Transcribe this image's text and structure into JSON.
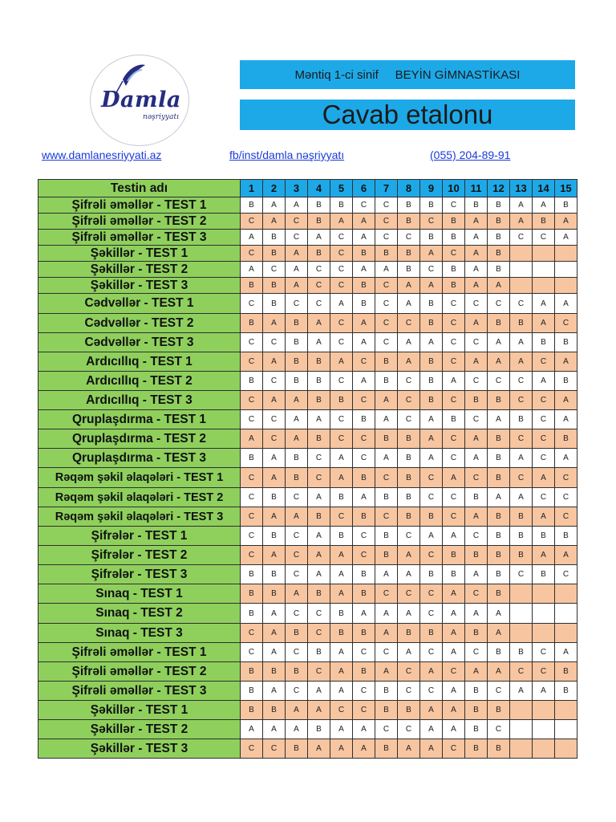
{
  "publisher": {
    "name": "Damla",
    "subtitle": "nəşriyyatı",
    "colors": {
      "logo_text": "#262c80",
      "banner": "#1da9e8",
      "name_cell": "#8fd05d",
      "peach_cell": "#f7c5a0"
    }
  },
  "header": {
    "subject": "Məntiq 1-ci sinif",
    "series": "BEYİN GİMNASTİKASI",
    "title": "Cavab etalonu"
  },
  "links": {
    "website": "www.damlanesriyyati.az",
    "social": "fb/inst/damla nəşriyyatı",
    "phone": "(055) 204-89-91"
  },
  "table": {
    "name_header": "Testin adı",
    "numbers": [
      "1",
      "2",
      "3",
      "4",
      "5",
      "6",
      "7",
      "8",
      "9",
      "10",
      "11",
      "12",
      "13",
      "14",
      "15"
    ],
    "rows": [
      {
        "name": "Şifrəli əməllər - TEST 1",
        "answers": [
          "B",
          "A",
          "A",
          "B",
          "B",
          "C",
          "C",
          "B",
          "B",
          "C",
          "B",
          "B",
          "A",
          "A",
          "B"
        ]
      },
      {
        "name": "Şifrəli əməllər - TEST 2",
        "answers": [
          "C",
          "A",
          "C",
          "B",
          "A",
          "A",
          "C",
          "B",
          "C",
          "B",
          "A",
          "B",
          "A",
          "B",
          "A"
        ]
      },
      {
        "name": "Şifrəli əməllər - TEST 3",
        "answers": [
          "A",
          "B",
          "C",
          "A",
          "C",
          "A",
          "C",
          "C",
          "B",
          "B",
          "A",
          "B",
          "C",
          "C",
          "A"
        ]
      },
      {
        "name": "Şəkillər - TEST 1",
        "answers": [
          "C",
          "B",
          "A",
          "B",
          "C",
          "B",
          "B",
          "B",
          "A",
          "C",
          "A",
          "B",
          "",
          "",
          ""
        ]
      },
      {
        "name": "Şəkillər - TEST 2",
        "answers": [
          "A",
          "C",
          "A",
          "C",
          "C",
          "A",
          "A",
          "B",
          "C",
          "B",
          "A",
          "B",
          "",
          "",
          ""
        ]
      },
      {
        "name": "Şəkillər - TEST 3",
        "answers": [
          "B",
          "B",
          "A",
          "C",
          "C",
          "B",
          "C",
          "A",
          "A",
          "B",
          "A",
          "A",
          "",
          "",
          ""
        ]
      },
      {
        "name": "Cədvəllər - TEST 1",
        "answers": [
          "C",
          "B",
          "C",
          "C",
          "A",
          "B",
          "C",
          "A",
          "B",
          "C",
          "C",
          "C",
          "C",
          "A",
          "A"
        ]
      },
      {
        "name": "Cədvəllər - TEST 2",
        "answers": [
          "B",
          "A",
          "B",
          "A",
          "C",
          "A",
          "C",
          "C",
          "B",
          "C",
          "A",
          "B",
          "B",
          "A",
          "C"
        ]
      },
      {
        "name": "Cədvəllər - TEST 3",
        "answers": [
          "C",
          "C",
          "B",
          "A",
          "C",
          "A",
          "C",
          "A",
          "A",
          "C",
          "C",
          "A",
          "A",
          "B",
          "B"
        ]
      },
      {
        "name": "Ardıcıllıq - TEST 1",
        "answers": [
          "C",
          "A",
          "B",
          "B",
          "A",
          "C",
          "B",
          "A",
          "B",
          "C",
          "A",
          "A",
          "A",
          "C",
          "A"
        ]
      },
      {
        "name": "Ardıcıllıq - TEST 2",
        "answers": [
          "B",
          "C",
          "B",
          "B",
          "C",
          "A",
          "B",
          "C",
          "B",
          "A",
          "C",
          "C",
          "C",
          "A",
          "B"
        ]
      },
      {
        "name": "Ardıcıllıq - TEST 3",
        "answers": [
          "C",
          "A",
          "A",
          "B",
          "B",
          "C",
          "A",
          "C",
          "B",
          "C",
          "B",
          "B",
          "C",
          "C",
          "A"
        ]
      },
      {
        "name": "Qruplaşdırma - TEST 1",
        "answers": [
          "C",
          "C",
          "A",
          "A",
          "C",
          "B",
          "A",
          "C",
          "A",
          "B",
          "C",
          "A",
          "B",
          "C",
          "A"
        ]
      },
      {
        "name": "Qruplaşdırma - TEST 2",
        "answers": [
          "A",
          "C",
          "A",
          "B",
          "C",
          "C",
          "B",
          "B",
          "A",
          "C",
          "A",
          "B",
          "C",
          "C",
          "B"
        ]
      },
      {
        "name": "Qruplaşdırma - TEST 3",
        "answers": [
          "B",
          "A",
          "B",
          "C",
          "A",
          "C",
          "A",
          "B",
          "A",
          "C",
          "A",
          "B",
          "A",
          "C",
          "A"
        ]
      },
      {
        "name": "Rəqəm şəkil əlaqələri - TEST 1",
        "answers": [
          "C",
          "A",
          "B",
          "C",
          "A",
          "B",
          "C",
          "B",
          "C",
          "A",
          "C",
          "B",
          "C",
          "A",
          "C"
        ]
      },
      {
        "name": "Rəqəm şəkil əlaqələri - TEST 2",
        "answers": [
          "C",
          "B",
          "C",
          "A",
          "B",
          "A",
          "B",
          "B",
          "C",
          "C",
          "B",
          "A",
          "A",
          "C",
          "C"
        ]
      },
      {
        "name": "Rəqəm şəkil əlaqələri - TEST 3",
        "answers": [
          "C",
          "A",
          "A",
          "B",
          "C",
          "B",
          "C",
          "B",
          "B",
          "C",
          "A",
          "B",
          "B",
          "A",
          "C"
        ]
      },
      {
        "name": "Şifrələr - TEST 1",
        "answers": [
          "C",
          "B",
          "C",
          "A",
          "B",
          "C",
          "B",
          "C",
          "A",
          "A",
          "C",
          "B",
          "B",
          "B",
          "B"
        ]
      },
      {
        "name": "Şifrələr - TEST 2",
        "answers": [
          "C",
          "A",
          "C",
          "A",
          "A",
          "C",
          "B",
          "A",
          "C",
          "B",
          "B",
          "B",
          "B",
          "A",
          "A"
        ]
      },
      {
        "name": "Şifrələr - TEST 3",
        "answers": [
          "B",
          "B",
          "C",
          "A",
          "A",
          "B",
          "A",
          "A",
          "B",
          "B",
          "A",
          "B",
          "C",
          "B",
          "C"
        ]
      },
      {
        "name": "Sınaq - TEST 1",
        "answers": [
          "B",
          "B",
          "A",
          "B",
          "A",
          "B",
          "C",
          "C",
          "C",
          "A",
          "C",
          "B",
          "",
          "",
          ""
        ]
      },
      {
        "name": "Sınaq - TEST 2",
        "answers": [
          "B",
          "A",
          "C",
          "C",
          "B",
          "A",
          "A",
          "A",
          "C",
          "A",
          "A",
          "A",
          "",
          "",
          ""
        ]
      },
      {
        "name": "Sınaq - TEST 3",
        "answers": [
          "C",
          "A",
          "B",
          "C",
          "B",
          "B",
          "A",
          "B",
          "B",
          "A",
          "B",
          "A",
          "",
          "",
          ""
        ]
      },
      {
        "name": "Şifrəli əməllər - TEST 1",
        "answers": [
          "C",
          "A",
          "C",
          "B",
          "A",
          "C",
          "C",
          "A",
          "C",
          "A",
          "C",
          "B",
          "B",
          "C",
          "A"
        ]
      },
      {
        "name": "Şifrəli əməllər - TEST 2",
        "answers": [
          "B",
          "B",
          "B",
          "C",
          "A",
          "B",
          "A",
          "C",
          "A",
          "C",
          "A",
          "A",
          "C",
          "C",
          "B"
        ]
      },
      {
        "name": "Şifrəli əməllər - TEST 3",
        "answers": [
          "B",
          "A",
          "C",
          "A",
          "A",
          "C",
          "B",
          "C",
          "C",
          "A",
          "B",
          "C",
          "A",
          "A",
          "B"
        ]
      },
      {
        "name": "Şəkillər - TEST 1",
        "answers": [
          "B",
          "B",
          "A",
          "A",
          "C",
          "C",
          "B",
          "B",
          "A",
          "A",
          "B",
          "B",
          "",
          "",
          ""
        ]
      },
      {
        "name": "Şəkillər - TEST 2",
        "answers": [
          "A",
          "A",
          "A",
          "B",
          "A",
          "A",
          "C",
          "C",
          "A",
          "A",
          "B",
          "C",
          "",
          "",
          ""
        ]
      },
      {
        "name": "Şəkillər - TEST 3",
        "answers": [
          "C",
          "C",
          "B",
          "A",
          "A",
          "A",
          "B",
          "A",
          "A",
          "C",
          "B",
          "B",
          "",
          "",
          ""
        ]
      }
    ]
  }
}
